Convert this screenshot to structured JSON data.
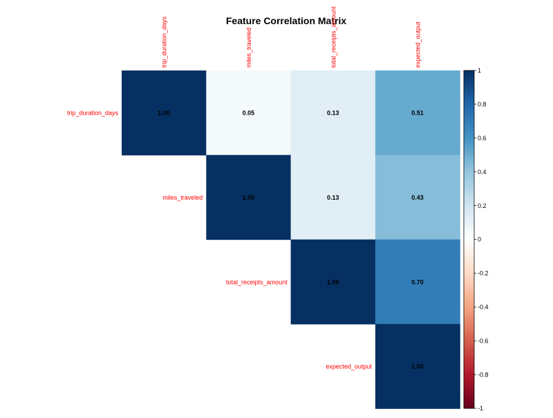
{
  "chart_data": {
    "type": "heatmap",
    "subtype": "upper-triangular correlation matrix",
    "title": "Feature Correlation Matrix",
    "variables": [
      "trip_duration_days",
      "miles_traveled",
      "total_receipts_amount",
      "expected_output"
    ],
    "matrix": [
      [
        1.0,
        0.05,
        0.13,
        0.51
      ],
      [
        null,
        1.0,
        0.13,
        0.43
      ],
      [
        null,
        null,
        1.0,
        0.7
      ],
      [
        null,
        null,
        null,
        1.0
      ]
    ],
    "value_labels": [
      [
        "1.00",
        "0.05",
        "0.13",
        "0.51"
      ],
      [
        null,
        "1.00",
        "0.13",
        "0.43"
      ],
      [
        null,
        null,
        "1.00",
        "0.70"
      ],
      [
        null,
        null,
        null,
        "1.00"
      ]
    ],
    "colorbar": {
      "range": [
        -1,
        1
      ],
      "ticks": [
        -1,
        -0.8,
        -0.6,
        -0.4,
        -0.2,
        0,
        0.2,
        0.4,
        0.6,
        0.8,
        1
      ],
      "tick_labels": [
        "-1",
        "-0.8",
        "-0.6",
        "-0.4",
        "-0.2",
        "0",
        "0.2",
        "0.4",
        "0.6",
        "0.8",
        "1"
      ],
      "placement": "right",
      "palette": [
        "#67001F",
        "#B2182B",
        "#D6604D",
        "#F4A582",
        "#FDDBC7",
        "#FFFFFF",
        "#D1E5F0",
        "#92C5DE",
        "#4393C3",
        "#2166AC",
        "#053061"
      ]
    },
    "label_color": "#FF0000",
    "value_text_color": "#000000",
    "grid": false
  }
}
